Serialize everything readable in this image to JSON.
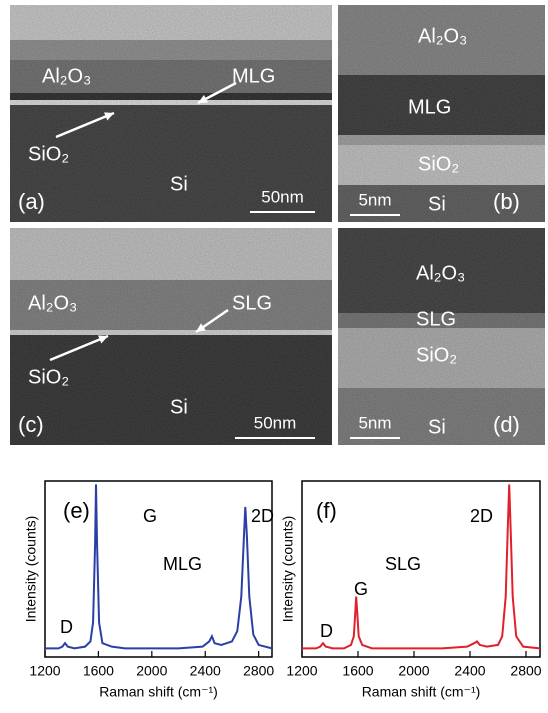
{
  "panels": [
    {
      "label": "(a)",
      "scale_bar": "50nm",
      "layers": [
        "Al₂O₃",
        "MLG",
        "SiO₂",
        "Si"
      ]
    },
    {
      "label": "(b)",
      "scale_bar": "5nm",
      "layers": [
        "Al₂O₃",
        "MLG",
        "SiO₂",
        "Si"
      ]
    },
    {
      "label": "(c)",
      "scale_bar": "50nm",
      "layers": [
        "Al₂O₃",
        "SLG",
        "SiO₂",
        "Si"
      ]
    },
    {
      "label": "(d)",
      "scale_bar": "5nm",
      "layers": [
        "Al₂O₃",
        "SLG",
        "SiO₂",
        "Si"
      ]
    }
  ],
  "chart_data": [
    {
      "type": "line",
      "panel_label": "(e)",
      "peak_labels": [
        "D",
        "G",
        "2D"
      ],
      "x_label": "Raman shift (cm⁻¹)",
      "y_label": "Intensity (counts)",
      "x": [
        1200,
        1300,
        1330,
        1350,
        1370,
        1420,
        1500,
        1540,
        1560,
        1575,
        1582,
        1590,
        1605,
        1630,
        1700,
        1800,
        2000,
        2200,
        2380,
        2430,
        2450,
        2470,
        2520,
        2600,
        2640,
        2670,
        2690,
        2700,
        2712,
        2730,
        2760,
        2800,
        2900
      ],
      "series": [
        {
          "name": "MLG",
          "color": "#2b3fa6",
          "values": [
            5,
            5,
            6,
            8,
            6,
            5,
            6,
            9,
            20,
            65,
            100,
            65,
            20,
            8,
            6,
            5,
            5,
            5,
            6,
            9,
            12,
            8,
            7,
            9,
            15,
            35,
            70,
            87,
            70,
            35,
            13,
            7,
            5
          ]
        }
      ],
      "xlim": [
        1200,
        2900
      ],
      "ylim": [
        0,
        102
      ],
      "xticks": [
        1200,
        1600,
        2000,
        2400,
        2800
      ]
    },
    {
      "type": "line",
      "panel_label": "(f)",
      "peak_labels": [
        "D",
        "G",
        "2D"
      ],
      "x_label": "Raman shift (cm⁻¹)",
      "y_label": "Intensity (counts)",
      "x": [
        1200,
        1300,
        1330,
        1350,
        1370,
        1420,
        1500,
        1550,
        1570,
        1580,
        1587,
        1595,
        1605,
        1630,
        1700,
        1800,
        2000,
        2200,
        2380,
        2430,
        2450,
        2470,
        2520,
        2600,
        2630,
        2655,
        2670,
        2680,
        2690,
        2705,
        2730,
        2780,
        2900
      ],
      "series": [
        {
          "name": "SLG",
          "color": "#e0202a",
          "values": [
            5,
            5,
            6,
            8,
            6,
            5,
            5,
            7,
            12,
            25,
            35,
            25,
            12,
            7,
            5,
            5,
            5,
            5,
            6,
            8,
            9,
            7,
            6,
            7,
            12,
            35,
            75,
            100,
            75,
            35,
            12,
            6,
            5
          ]
        }
      ],
      "xlim": [
        1200,
        2900
      ],
      "ylim": [
        0,
        102
      ],
      "xticks": [
        1200,
        1600,
        2000,
        2400,
        2800
      ]
    }
  ]
}
